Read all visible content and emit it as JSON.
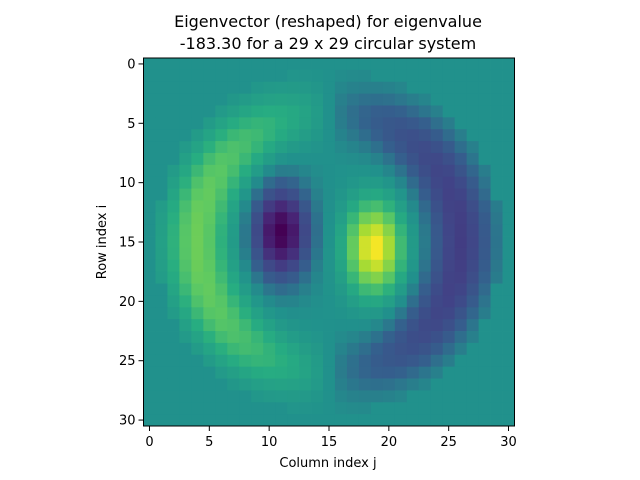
{
  "chart_data": {
    "type": "heatmap",
    "title_line1": "Eigenvector (reshaped) for eigenvalue",
    "title_line2": "-183.30 for a 29 x 29 circular system",
    "xlabel": "Column index j",
    "ylabel": "Row index i",
    "grid_size": 31,
    "xlim": [
      -0.5,
      30.5
    ],
    "ylim": [
      30.5,
      -0.5
    ],
    "x_ticks": [
      0,
      5,
      10,
      15,
      20,
      25,
      30
    ],
    "y_ticks": [
      0,
      5,
      10,
      15,
      20,
      25,
      30
    ],
    "x_tick_labels": [
      "0",
      "5",
      "10",
      "15",
      "20",
      "25",
      "30"
    ],
    "y_tick_labels": [
      "0",
      "5",
      "10",
      "15",
      "20",
      "25",
      "30"
    ],
    "colormap": "viridis",
    "value_range": [
      -1,
      1
    ],
    "background_value": 0,
    "disk": {
      "center_row": 15,
      "center_col": 15,
      "radius": 14.5
    },
    "modes": [
      {
        "row": 14.2,
        "col": 11.0,
        "sigma_row": 2.6,
        "sigma_col": 1.6,
        "amp": -1.0
      },
      {
        "row": 15.5,
        "col": 18.8,
        "sigma_row": 2.6,
        "sigma_col": 1.6,
        "amp": 1.0
      }
    ],
    "rings": [
      {
        "center_row": 15,
        "center_col": 15,
        "radius": 11.0,
        "width": 1.8,
        "side": "left",
        "amp": 0.55
      },
      {
        "center_row": 15,
        "center_col": 15,
        "radius": 11.0,
        "width": 1.8,
        "side": "right",
        "amp": -0.55
      }
    ]
  }
}
